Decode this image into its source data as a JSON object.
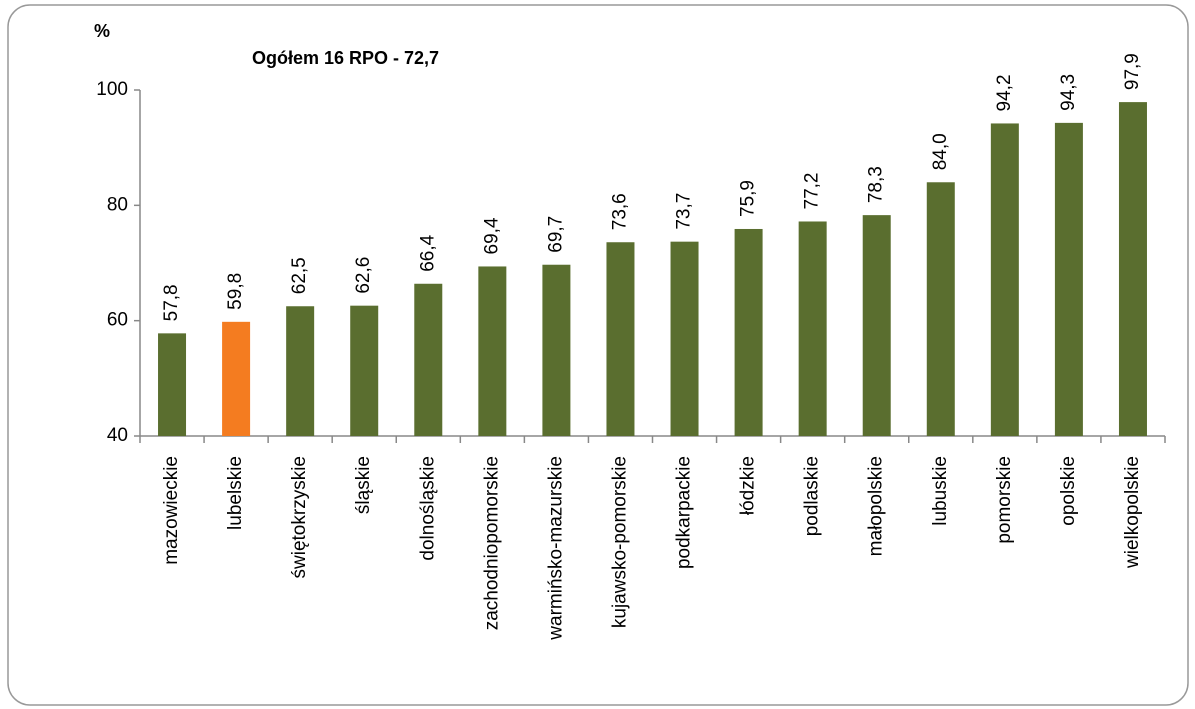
{
  "chart_data": {
    "type": "bar",
    "title": "Ogółem 16 RPO - 72,7",
    "y_label": "%",
    "categories": [
      "mazowieckie",
      "lubelskie",
      "świętokrzyskie",
      "śląskie",
      "dolnośląskie",
      "zachodniopomorskie",
      "warmińsko-mazurskie",
      "kujawsko-pomorskie",
      "podkarpackie",
      "łódzkie",
      "podlaskie",
      "małopolskie",
      "lubuskie",
      "pomorskie",
      "opolskie",
      "wielkopolskie"
    ],
    "values": [
      57.8,
      59.8,
      62.5,
      62.6,
      66.4,
      69.4,
      69.7,
      73.6,
      73.7,
      75.9,
      77.2,
      78.3,
      84.0,
      94.2,
      94.3,
      97.9
    ],
    "value_labels": [
      "57,8",
      "59,8",
      "62,5",
      "62,6",
      "66,4",
      "69,4",
      "69,7",
      "73,6",
      "73,7",
      "75,9",
      "77,2",
      "78,3",
      "84,0",
      "94,2",
      "94,3",
      "97,9"
    ],
    "colors": [
      "#5a6e2f",
      "#f47c20",
      "#5a6e2f",
      "#5a6e2f",
      "#5a6e2f",
      "#5a6e2f",
      "#5a6e2f",
      "#5a6e2f",
      "#5a6e2f",
      "#5a6e2f",
      "#5a6e2f",
      "#5a6e2f",
      "#5a6e2f",
      "#5a6e2f",
      "#5a6e2f",
      "#5a6e2f"
    ],
    "ylim": [
      40,
      100
    ],
    "yticks": [
      40,
      60,
      80,
      100
    ],
    "grid": false
  }
}
